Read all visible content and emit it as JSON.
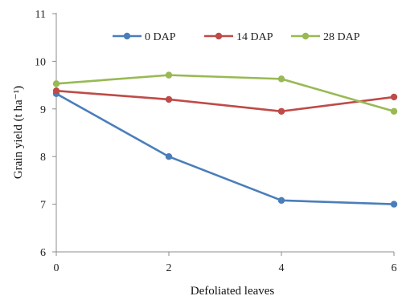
{
  "chart_data": {
    "type": "line",
    "x": [
      0,
      2,
      4,
      6
    ],
    "xlim": [
      0,
      6
    ],
    "ylim": [
      6,
      11
    ],
    "xticks": [
      0,
      2,
      4,
      6
    ],
    "yticks": [
      6,
      7,
      8,
      9,
      10,
      11
    ],
    "xlabel": "Defoliated leaves",
    "ylabel": "Grain yield (t ha⁻¹)",
    "grid": false,
    "legend_position": "top",
    "series": [
      {
        "name": "0 DAP",
        "color": "#4a7ebb",
        "values": [
          9.32,
          8.0,
          7.08,
          7.0
        ]
      },
      {
        "name": "14 DAP",
        "color": "#be4b48",
        "values": [
          9.38,
          9.2,
          8.95,
          9.25
        ]
      },
      {
        "name": "28 DAP",
        "color": "#98b954",
        "values": [
          9.53,
          9.71,
          9.63,
          8.95
        ]
      }
    ]
  }
}
